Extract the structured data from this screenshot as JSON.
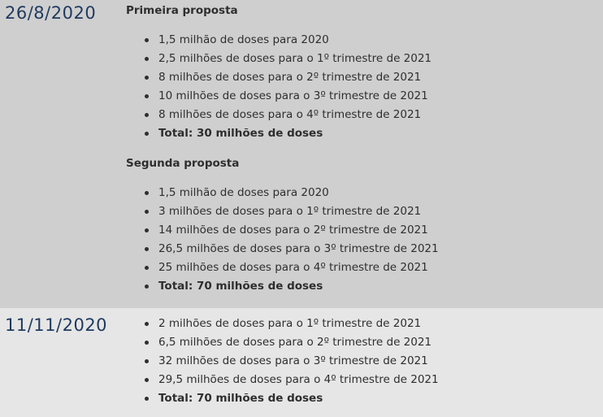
{
  "entries": [
    {
      "date": "26/8/2020",
      "proposals": [
        {
          "title": "Primeira proposta",
          "items": [
            "1,5 milhão de doses para 2020",
            "2,5 milhões de doses para o 1º trimestre de 2021",
            "8 milhões de doses para o 2º trimestre de 2021",
            "10 milhões de doses para o 3º trimestre de 2021",
            "8 milhões de doses para o 4º trimestre de 2021"
          ],
          "total": "Total: 30 milhões de doses"
        },
        {
          "title": "Segunda proposta",
          "items": [
            "1,5 milhão de doses para 2020",
            "3 milhões de doses para o 1º trimestre de 2021",
            "14 milhões de doses para o 2º trimestre de 2021",
            "26,5 milhões de doses para o 3º trimestre de 2021",
            "25 milhões de doses para o 4º trimestre de 2021"
          ],
          "total": "Total: 70 milhões de doses"
        }
      ]
    },
    {
      "date": "11/11/2020",
      "items": [
        "2 milhões de doses para o 1º trimestre de 2021",
        "6,5 milhões de doses para o 2º trimestre de 2021",
        "32 milhões de doses para o 3º trimestre de 2021",
        "29,5 milhões de doses para o 4º trimestre de 2021"
      ],
      "total": "Total: 70 milhões de doses"
    }
  ],
  "colors": {
    "row1_bg": "#cfcfcf",
    "row2_bg": "#e6e6e6",
    "date_color": "#1f3a5f",
    "text_color": "#2e2e2e"
  }
}
